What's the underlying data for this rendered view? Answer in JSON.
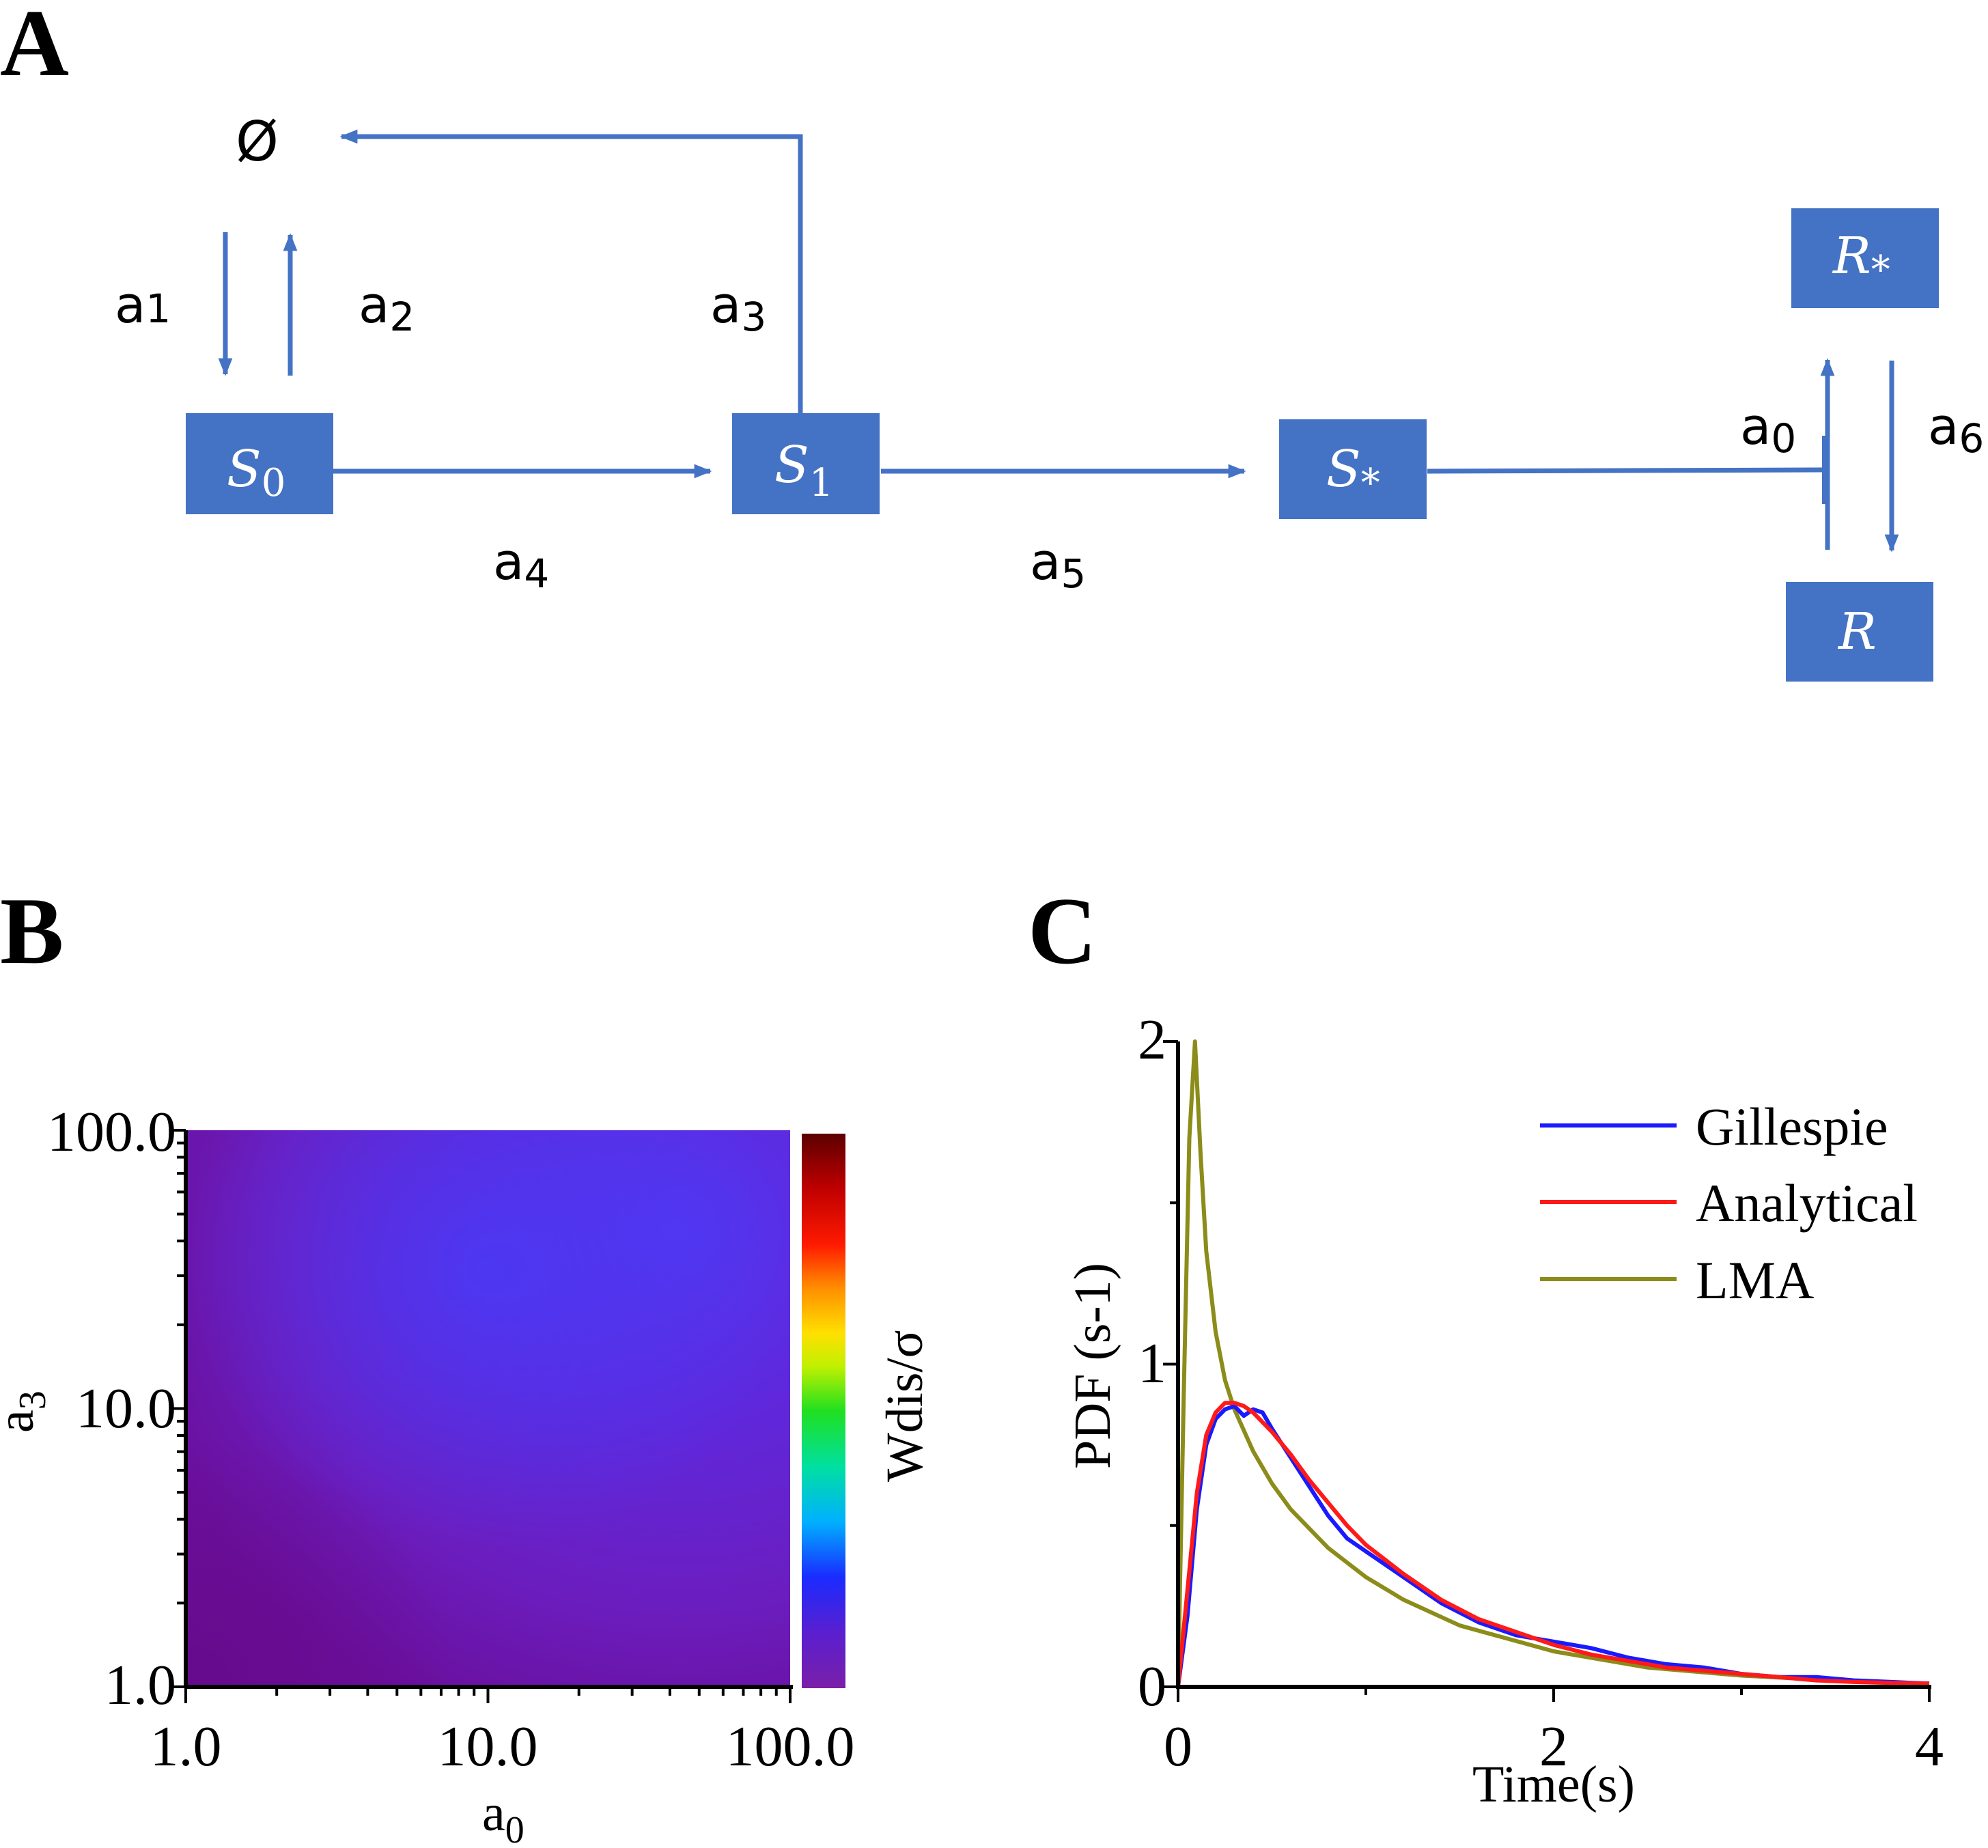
{
  "panels": {
    "a": "A",
    "b": "B",
    "c": "C"
  },
  "colors": {
    "diagram": "#4472C4"
  },
  "diagram": {
    "empty_set": "Ø",
    "nodes": {
      "s0": {
        "main": "S",
        "sub": "0"
      },
      "s1": {
        "main": "S",
        "sub": "1"
      },
      "sstar": {
        "main": "S",
        "sub": "*"
      },
      "rstar": {
        "main": "R",
        "sub": "*"
      },
      "r": {
        "main": "R"
      }
    },
    "rates": {
      "a1": {
        "main": "a",
        "sub": "1"
      },
      "a2": {
        "main": "a",
        "sub": "2"
      },
      "a3": {
        "main": "a",
        "sub": "3"
      },
      "a4": {
        "main": "a",
        "sub": "4"
      },
      "a5": {
        "main": "a",
        "sub": "5"
      },
      "a0": {
        "main": "a",
        "sub": "0"
      },
      "a6": {
        "main": "a",
        "sub": "6"
      }
    }
  },
  "heatmap": {
    "colorbar_label": "Wdis/σ",
    "x_tick_labels": [
      "1.0",
      "10.0",
      "100.0"
    ],
    "y_tick_labels": [
      "1.0",
      "10.0",
      "100.0"
    ],
    "x_axis_main": "a",
    "x_axis_sub": "0",
    "y_axis_main": "a",
    "y_axis_sub": "3",
    "colors": {
      "low": "#6a0f9c",
      "mid": "#6a1fc4",
      "high": "#5a2ee8"
    }
  },
  "chart_data": {
    "type": "line",
    "x_tick_labels": [
      "0",
      "2",
      "4"
    ],
    "y_tick_labels": [
      "0",
      "1",
      "2"
    ],
    "xlabel": "Time(s)",
    "ylabel": "PDF (s-1)",
    "xlim": [
      0,
      4
    ],
    "ylim": [
      0,
      2
    ],
    "legend_position": "top-right",
    "series": [
      {
        "name": "Gillespie",
        "color": "#1a1aff",
        "x": [
          0,
          0.05,
          0.1,
          0.15,
          0.2,
          0.25,
          0.3,
          0.35,
          0.4,
          0.45,
          0.5,
          0.6,
          0.7,
          0.8,
          0.9,
          1.0,
          1.2,
          1.4,
          1.6,
          1.8,
          2.0,
          2.2,
          2.4,
          2.6,
          2.8,
          3.0,
          3.2,
          3.4,
          3.6,
          3.8,
          4.0
        ],
        "y": [
          0,
          0.22,
          0.55,
          0.75,
          0.83,
          0.86,
          0.87,
          0.84,
          0.86,
          0.85,
          0.8,
          0.71,
          0.62,
          0.53,
          0.46,
          0.42,
          0.34,
          0.26,
          0.2,
          0.16,
          0.14,
          0.12,
          0.09,
          0.07,
          0.06,
          0.04,
          0.03,
          0.03,
          0.02,
          0.015,
          0.01
        ]
      },
      {
        "name": "Analytical",
        "color": "#ff1a1a",
        "x": [
          0,
          0.05,
          0.1,
          0.15,
          0.2,
          0.25,
          0.3,
          0.35,
          0.4,
          0.5,
          0.6,
          0.7,
          0.8,
          0.9,
          1.0,
          1.2,
          1.4,
          1.6,
          1.8,
          2.0,
          2.2,
          2.4,
          2.6,
          2.8,
          3.0,
          3.2,
          3.4,
          3.6,
          3.8,
          4.0
        ],
        "y": [
          0,
          0.3,
          0.6,
          0.78,
          0.85,
          0.88,
          0.88,
          0.87,
          0.85,
          0.79,
          0.72,
          0.64,
          0.57,
          0.5,
          0.44,
          0.35,
          0.27,
          0.21,
          0.17,
          0.13,
          0.1,
          0.08,
          0.06,
          0.05,
          0.04,
          0.03,
          0.02,
          0.015,
          0.012,
          0.01
        ]
      },
      {
        "name": "LMA",
        "color": "#8c8c1a",
        "x": [
          0,
          0.03,
          0.06,
          0.09,
          0.12,
          0.15,
          0.2,
          0.25,
          0.3,
          0.4,
          0.5,
          0.6,
          0.8,
          1.0,
          1.2,
          1.5,
          2.0,
          2.5,
          3.0,
          3.5,
          4.0
        ],
        "y": [
          0,
          0.9,
          1.7,
          2.0,
          1.65,
          1.35,
          1.1,
          0.95,
          0.86,
          0.73,
          0.63,
          0.55,
          0.43,
          0.34,
          0.27,
          0.19,
          0.11,
          0.06,
          0.035,
          0.02,
          0.01
        ]
      }
    ]
  }
}
